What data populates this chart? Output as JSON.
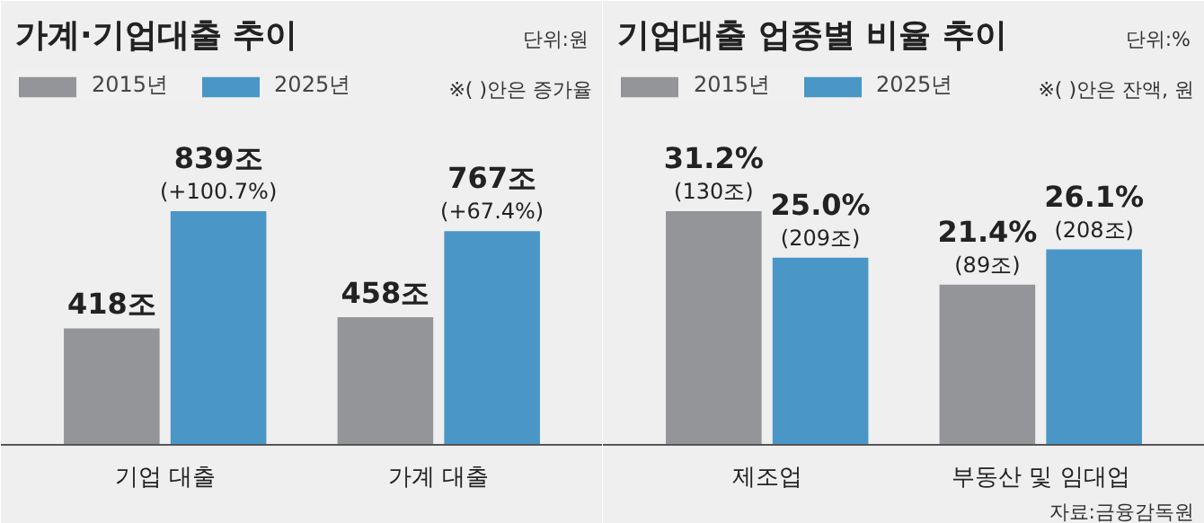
{
  "chart_data": [
    {
      "type": "bar",
      "title": "가계·기업대출 추이",
      "subtitle": "단위:원",
      "categories": [
        "기업 대출",
        "가계 대출"
      ],
      "legend": "top left",
      "grid": false,
      "annotations": [
        "※( )안은 증가율"
      ],
      "series": [
        {
          "name": "2015년",
          "color": "#939598",
          "values": [
            418,
            458
          ],
          "value_labels": [
            "418조",
            "458조"
          ]
        },
        {
          "name": "2025년",
          "color": "#4a96c6",
          "values": [
            839,
            767
          ],
          "value_labels": [
            "839조\n(+100.7%)",
            "767조\n(+67.4%)"
          ]
        }
      ]
    },
    {
      "type": "bar",
      "title": "기업대출 업종별 비율 추이",
      "subtitle": "단위:%",
      "categories": [
        "제조업",
        "부동산 및 임대업"
      ],
      "legend": "top left",
      "grid": false,
      "annotations": [
        "※( )안은 잔액, 원",
        "자료:금융감독원"
      ],
      "series": [
        {
          "name": "2015년",
          "color": "#939598",
          "values": [
            31.2,
            21.4
          ],
          "value_labels": [
            "31.2%\n(130조)",
            "21.4%\n(89조)"
          ]
        },
        {
          "name": "2025년",
          "color": "#4a96c6",
          "values": [
            25.0,
            26.1
          ],
          "value_labels": [
            "25.0%\n(209조)",
            "26.1%\n(208조)"
          ]
        }
      ]
    }
  ]
}
